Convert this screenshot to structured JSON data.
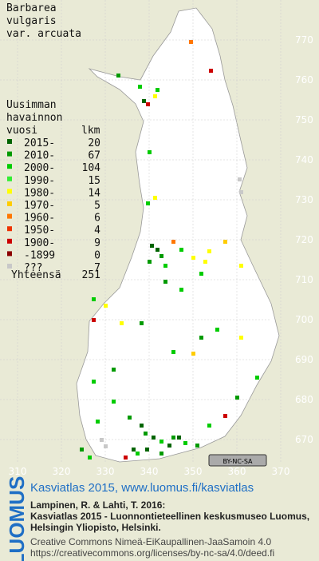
{
  "title_lines": [
    "Barbarea",
    "vulgaris",
    "var. arcuata"
  ],
  "legend": {
    "header": [
      "Uusimman",
      "havainnon",
      "vuosi"
    ],
    "count_header": "lkm",
    "rows": [
      {
        "label": "2015-",
        "count": 20,
        "color": "#006400"
      },
      {
        "label": "2010-",
        "count": 67,
        "color": "#009a00"
      },
      {
        "label": "2000-",
        "count": 104,
        "color": "#00cc00"
      },
      {
        "label": "1990-",
        "count": 15,
        "color": "#33ee33"
      },
      {
        "label": "1980-",
        "count": 14,
        "color": "#ffff00"
      },
      {
        "label": "1970-",
        "count": 5,
        "color": "#ffcc00"
      },
      {
        "label": "1960-",
        "count": 6,
        "color": "#ff7700"
      },
      {
        "label": "1950-",
        "count": 4,
        "color": "#ee3300"
      },
      {
        "label": "1900-",
        "count": 9,
        "color": "#cc0000"
      },
      {
        "label": "-1899",
        "count": 0,
        "color": "#8b0000"
      },
      {
        "label": "???",
        "count": 7,
        "color": "#c8c8c8"
      }
    ],
    "total_label": "Yhteensä",
    "total": 251
  },
  "y_labels": [
    "770",
    "760",
    "750",
    "740",
    "730",
    "720",
    "710",
    "700",
    "690",
    "680",
    "670"
  ],
  "x_labels": [
    "310",
    "320",
    "330",
    "340",
    "350",
    "360",
    "370"
  ],
  "license_badge": "BY-NC-SA",
  "footer": {
    "logo": "LUOMUS",
    "link": "Kasviatlas 2015, www.luomus.fi/kasviatlas",
    "citation": [
      "Lampinen, R. & Lahti, T. 2016:",
      "Kasviatlas 2015 - Luonnontieteellinen keskusmuseo Luomus,",
      "Helsingin Yliopisto, Helsinki."
    ],
    "license": [
      "Creative Commons Nimeä-EiKaupallinen-JaaSamoin 4.0",
      "https://creativecommons.org/licenses/by-nc-sa/4.0/deed.fi"
    ]
  }
}
